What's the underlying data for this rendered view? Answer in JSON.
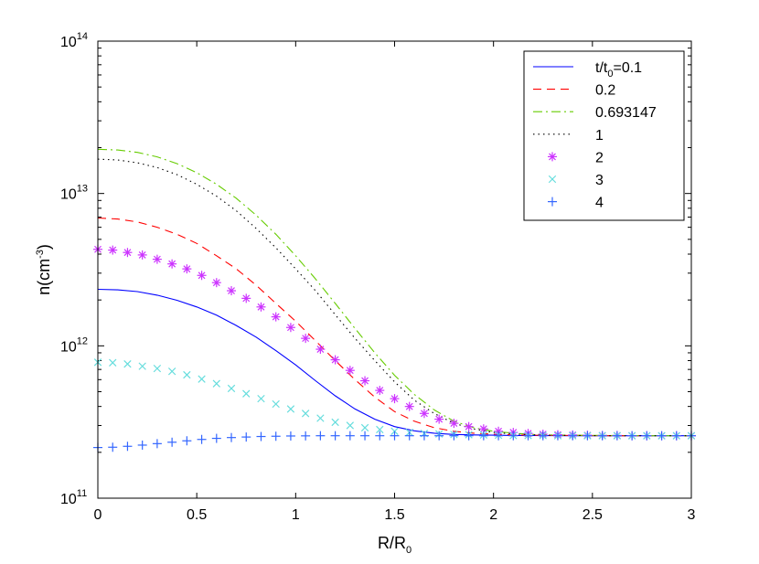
{
  "chart_data": {
    "type": "line",
    "title": "",
    "xlabel_main": "R/R",
    "xlabel_sub": "0",
    "ylabel_main": "n(cm",
    "ylabel_sup": "-3",
    "ylabel_close": ")",
    "xlim": [
      0,
      3
    ],
    "ylim_log10": [
      11,
      14
    ],
    "yscale": "log",
    "grid": false,
    "legend_position": "top-right",
    "x_ticks": [
      {
        "value": 0,
        "label": "0"
      },
      {
        "value": 0.5,
        "label": "0.5"
      },
      {
        "value": 1,
        "label": "1"
      },
      {
        "value": 1.5,
        "label": "1.5"
      },
      {
        "value": 2,
        "label": "2"
      },
      {
        "value": 2.5,
        "label": "2.5"
      },
      {
        "value": 3,
        "label": "3"
      }
    ],
    "y_ticks": [
      {
        "exp": 11,
        "base": "10",
        "sup": "11"
      },
      {
        "exp": 12,
        "base": "10",
        "sup": "12"
      },
      {
        "exp": 13,
        "base": "10",
        "sup": "13"
      },
      {
        "exp": 14,
        "base": "10",
        "sup": "14"
      }
    ],
    "series": [
      {
        "name": "t/t0=0.1",
        "legend_parts": [
          "t/t",
          "0",
          "=0.1"
        ],
        "style": "solid",
        "color": "#0000ff",
        "x": [
          0,
          0.1,
          0.2,
          0.3,
          0.4,
          0.5,
          0.6,
          0.7,
          0.8,
          0.9,
          1.0,
          1.1,
          1.2,
          1.3,
          1.4,
          1.5,
          1.6,
          1.7,
          1.8,
          1.9,
          2.0,
          2.1,
          2.2,
          2.4,
          2.6,
          2.8,
          3.0
        ],
        "values": [
          2350000000000.0,
          2330000000000.0,
          2270000000000.0,
          2150000000000.0,
          1990000000000.0,
          1800000000000.0,
          1590000000000.0,
          1360000000000.0,
          1140000000000.0,
          930000000000.0,
          750000000000.0,
          590000000000.0,
          470000000000.0,
          385000000000.0,
          330000000000.0,
          295000000000.0,
          277000000000.0,
          267000000000.0,
          262000000000.0,
          260000000000.0,
          259000000000.0,
          258000000000.0,
          258000000000.0,
          257000000000.0,
          257000000000.0,
          257000000000.0,
          257000000000.0
        ]
      },
      {
        "name": "0.2",
        "legend_parts": [
          "0.2"
        ],
        "style": "dashed",
        "color": "#ff0000",
        "x": [
          0,
          0.1,
          0.2,
          0.3,
          0.4,
          0.5,
          0.6,
          0.7,
          0.8,
          0.9,
          1.0,
          1.1,
          1.2,
          1.3,
          1.4,
          1.5,
          1.6,
          1.7,
          1.8,
          1.9,
          2.0,
          2.1,
          2.2,
          2.4,
          2.6,
          2.8,
          3.0
        ],
        "values": [
          6900000000000.0,
          6800000000000.0,
          6500000000000.0,
          6000000000000.0,
          5400000000000.0,
          4700000000000.0,
          3900000000000.0,
          3200000000000.0,
          2500000000000.0,
          1900000000000.0,
          1450000000000.0,
          1080000000000.0,
          800000000000.0,
          600000000000.0,
          460000000000.0,
          370000000000.0,
          320000000000.0,
          290000000000.0,
          275000000000.0,
          267000000000.0,
          263000000000.0,
          260000000000.0,
          259000000000.0,
          258000000000.0,
          257000000000.0,
          257000000000.0,
          257000000000.0
        ]
      },
      {
        "name": "0.693147",
        "legend_parts": [
          "0.693147"
        ],
        "style": "dashdot",
        "color": "#66cc00",
        "x": [
          0,
          0.1,
          0.2,
          0.3,
          0.4,
          0.5,
          0.6,
          0.7,
          0.8,
          0.9,
          1.0,
          1.1,
          1.2,
          1.3,
          1.4,
          1.5,
          1.6,
          1.7,
          1.8,
          1.9,
          2.0,
          2.1,
          2.2,
          2.3,
          2.4,
          2.6,
          2.8,
          3.0
        ],
        "values": [
          19500000000000.0,
          19300000000000.0,
          18600000000000.0,
          17400000000000.0,
          15700000000000.0,
          13700000000000.0,
          11500000000000.0,
          9300000000000.0,
          7200000000000.0,
          5400000000000.0,
          3900000000000.0,
          2750000000000.0,
          1900000000000.0,
          1300000000000.0,
          900000000000.0,
          640000000000.0,
          480000000000.0,
          380000000000.0,
          320000000000.0,
          290000000000.0,
          275000000000.0,
          267000000000.0,
          262000000000.0,
          260000000000.0,
          259000000000.0,
          258000000000.0,
          257000000000.0,
          257000000000.0
        ]
      },
      {
        "name": "1",
        "legend_parts": [
          "1"
        ],
        "style": "dotted",
        "color": "#000000",
        "x": [
          0,
          0.1,
          0.2,
          0.3,
          0.4,
          0.5,
          0.6,
          0.7,
          0.8,
          0.9,
          1.0,
          1.1,
          1.2,
          1.3,
          1.4,
          1.5,
          1.6,
          1.7,
          1.8,
          1.9,
          2.0,
          2.1,
          2.2,
          2.3,
          2.4,
          2.6,
          2.8,
          3.0
        ],
        "values": [
          16800000000000.0,
          16600000000000.0,
          15900000000000.0,
          14800000000000.0,
          13300000000000.0,
          11500000000000.0,
          9600000000000.0,
          7700000000000.0,
          5900000000000.0,
          4400000000000.0,
          3200000000000.0,
          2300000000000.0,
          1600000000000.0,
          1120000000000.0,
          800000000000.0,
          580000000000.0,
          440000000000.0,
          360000000000.0,
          310000000000.0,
          285000000000.0,
          270000000000.0,
          264000000000.0,
          261000000000.0,
          259000000000.0,
          258000000000.0,
          257000000000.0,
          257000000000.0,
          257000000000.0
        ]
      },
      {
        "name": "2",
        "legend_parts": [
          "2"
        ],
        "style": "marker-star",
        "color": "#cc33ff",
        "x": [
          0,
          0.075,
          0.15,
          0.225,
          0.3,
          0.375,
          0.45,
          0.525,
          0.6,
          0.675,
          0.75,
          0.825,
          0.9,
          0.975,
          1.05,
          1.125,
          1.2,
          1.275,
          1.35,
          1.425,
          1.5,
          1.575,
          1.65,
          1.725,
          1.8,
          1.875,
          1.95,
          2.025,
          2.1,
          2.175,
          2.25,
          2.325,
          2.4,
          2.475,
          2.55,
          2.625,
          2.7,
          2.775,
          2.85,
          2.925,
          3.0
        ],
        "values": [
          4300000000000.0,
          4250000000000.0,
          4100000000000.0,
          3950000000000.0,
          3700000000000.0,
          3450000000000.0,
          3200000000000.0,
          2900000000000.0,
          2600000000000.0,
          2300000000000.0,
          2050000000000.0,
          1800000000000.0,
          1550000000000.0,
          1320000000000.0,
          1120000000000.0,
          950000000000.0,
          810000000000.0,
          690000000000.0,
          590000000000.0,
          510000000000.0,
          450000000000.0,
          400000000000.0,
          360000000000.0,
          330000000000.0,
          310000000000.0,
          295000000000.0,
          285000000000.0,
          275000000000.0,
          270000000000.0,
          266000000000.0,
          263000000000.0,
          261000000000.0,
          260000000000.0,
          259000000000.0,
          258000000000.0,
          258000000000.0,
          257000000000.0,
          257000000000.0,
          257000000000.0,
          257000000000.0,
          257000000000.0
        ]
      },
      {
        "name": "3",
        "legend_parts": [
          "3"
        ],
        "style": "marker-x",
        "color": "#66dddd",
        "x": [
          0,
          0.075,
          0.15,
          0.225,
          0.3,
          0.375,
          0.45,
          0.525,
          0.6,
          0.675,
          0.75,
          0.825,
          0.9,
          0.975,
          1.05,
          1.125,
          1.2,
          1.275,
          1.35,
          1.425,
          1.5,
          1.575,
          1.65,
          1.725,
          1.8,
          1.875,
          1.95,
          2.025,
          2.1,
          2.175,
          2.25,
          2.325,
          2.4,
          2.475,
          2.55,
          2.625,
          2.7,
          2.775,
          2.85,
          2.925,
          3.0
        ],
        "values": [
          780000000000.0,
          775000000000.0,
          760000000000.0,
          735000000000.0,
          710000000000.0,
          680000000000.0,
          645000000000.0,
          605000000000.0,
          565000000000.0,
          525000000000.0,
          485000000000.0,
          450000000000.0,
          415000000000.0,
          385000000000.0,
          360000000000.0,
          335000000000.0,
          315000000000.0,
          300000000000.0,
          290000000000.0,
          282000000000.0,
          275000000000.0,
          270000000000.0,
          266000000000.0,
          264000000000.0,
          262000000000.0,
          261000000000.0,
          260000000000.0,
          259000000000.0,
          258000000000.0,
          258000000000.0,
          258000000000.0,
          257000000000.0,
          257000000000.0,
          257000000000.0,
          257000000000.0,
          257000000000.0,
          257000000000.0,
          257000000000.0,
          257000000000.0,
          257000000000.0,
          257000000000.0
        ]
      },
      {
        "name": "4",
        "legend_parts": [
          "4"
        ],
        "style": "marker-plus",
        "color": "#3366ff",
        "x": [
          0,
          0.075,
          0.15,
          0.225,
          0.3,
          0.375,
          0.45,
          0.525,
          0.6,
          0.675,
          0.75,
          0.825,
          0.9,
          0.975,
          1.05,
          1.125,
          1.2,
          1.275,
          1.35,
          1.425,
          1.5,
          1.575,
          1.65,
          1.725,
          1.8,
          1.875,
          1.95,
          2.025,
          2.1,
          2.175,
          2.25,
          2.325,
          2.4,
          2.475,
          2.55,
          2.625,
          2.7,
          2.775,
          2.85,
          2.925,
          3.0
        ],
        "values": [
          215000000000.0,
          216000000000.0,
          219000000000.0,
          223000000000.0,
          228000000000.0,
          233000000000.0,
          238000000000.0,
          243000000000.0,
          247000000000.0,
          250000000000.0,
          252000000000.0,
          254000000000.0,
          255000000000.0,
          256000000000.0,
          256500000000.0,
          257000000000.0,
          257000000000.0,
          257000000000.0,
          257000000000.0,
          257000000000.0,
          257000000000.0,
          257000000000.0,
          257000000000.0,
          257000000000.0,
          257000000000.0,
          257000000000.0,
          257000000000.0,
          257000000000.0,
          257000000000.0,
          257000000000.0,
          257000000000.0,
          257000000000.0,
          257000000000.0,
          257000000000.0,
          257000000000.0,
          257000000000.0,
          257000000000.0,
          257000000000.0,
          257000000000.0,
          257000000000.0,
          257000000000.0
        ]
      }
    ]
  }
}
